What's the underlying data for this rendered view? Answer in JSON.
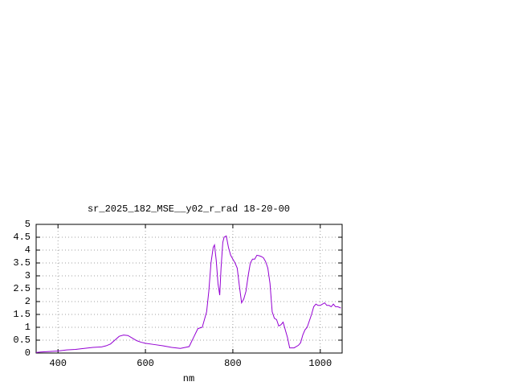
{
  "chart_data": {
    "type": "line",
    "title": "sr_2025_182_MSE__y02_r_rad 18-20-00",
    "x_label": "nm",
    "xlim": [
      350,
      1050
    ],
    "xticks": [
      400,
      600,
      800,
      1000
    ],
    "ylim": [
      0,
      5
    ],
    "yticks": [
      0,
      0.5,
      1,
      1.5,
      2,
      2.5,
      3,
      3.5,
      4,
      4.5,
      5
    ],
    "grid": true,
    "series": [
      {
        "color": "#9400d3",
        "x": [
          350,
          360,
          380,
          400,
          420,
          440,
          460,
          480,
          500,
          510,
          520,
          530,
          540,
          550,
          560,
          570,
          580,
          590,
          600,
          620,
          640,
          660,
          680,
          700,
          710,
          720,
          730,
          740,
          745,
          750,
          755,
          758,
          762,
          766,
          770,
          773,
          777,
          780,
          785,
          790,
          795,
          800,
          805,
          810,
          815,
          820,
          825,
          830,
          835,
          840,
          845,
          850,
          855,
          860,
          865,
          870,
          875,
          880,
          885,
          890,
          895,
          900,
          905,
          910,
          915,
          920,
          925,
          930,
          940,
          950,
          955,
          960,
          965,
          970,
          980,
          985,
          990,
          995,
          1000,
          1005,
          1010,
          1015,
          1020,
          1025,
          1030,
          1035,
          1040,
          1047
        ],
        "values": [
          0.02,
          0.04,
          0.06,
          0.08,
          0.12,
          0.14,
          0.18,
          0.22,
          0.24,
          0.28,
          0.35,
          0.5,
          0.65,
          0.7,
          0.68,
          0.58,
          0.48,
          0.42,
          0.38,
          0.33,
          0.28,
          0.22,
          0.18,
          0.25,
          0.6,
          0.95,
          1.0,
          1.6,
          2.4,
          3.5,
          4.1,
          4.2,
          3.6,
          2.7,
          2.25,
          3.3,
          4.3,
          4.5,
          4.55,
          4.1,
          3.8,
          3.65,
          3.5,
          3.3,
          2.6,
          1.95,
          2.1,
          2.4,
          3.0,
          3.5,
          3.65,
          3.65,
          3.8,
          3.78,
          3.75,
          3.7,
          3.55,
          3.3,
          2.7,
          1.6,
          1.35,
          1.3,
          1.05,
          1.1,
          1.2,
          0.9,
          0.6,
          0.2,
          0.2,
          0.3,
          0.4,
          0.7,
          0.9,
          1.0,
          1.5,
          1.8,
          1.9,
          1.85,
          1.85,
          1.9,
          1.95,
          1.85,
          1.85,
          1.8,
          1.9,
          1.8,
          1.8,
          1.75
        ]
      }
    ]
  }
}
